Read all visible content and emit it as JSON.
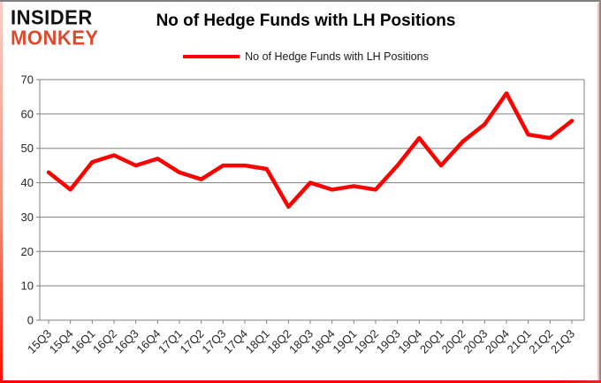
{
  "logo": {
    "line1": "INSIDER",
    "line2": "MONKEY",
    "line1_color": "#111111",
    "line2_color": "#d84b31"
  },
  "header": {
    "title": "No of Hedge Funds with LH Positions"
  },
  "legend": {
    "label": "No of Hedge Funds with LH Positions",
    "line_color": "#ff0000",
    "position": "top"
  },
  "chart_data": {
    "type": "line",
    "title": "No of Hedge Funds with LH Positions",
    "categories": [
      "15Q3",
      "15Q4",
      "16Q1",
      "16Q2",
      "16Q3",
      "16Q4",
      "17Q1",
      "17Q2",
      "17Q3",
      "17Q4",
      "18Q1",
      "18Q2",
      "18Q3",
      "18Q4",
      "19Q1",
      "19Q2",
      "19Q3",
      "19Q4",
      "20Q1",
      "20Q2",
      "20Q3",
      "20Q4",
      "21Q1",
      "21Q2",
      "21Q3"
    ],
    "series": [
      {
        "name": "No of Hedge Funds with LH Positions",
        "color": "#ff0000",
        "values": [
          43,
          38,
          46,
          48,
          45,
          47,
          43,
          41,
          45,
          45,
          44,
          33,
          40,
          38,
          39,
          38,
          45,
          53,
          45,
          52,
          57,
          66,
          54,
          53,
          58
        ]
      }
    ],
    "xlabel": "",
    "ylabel": "",
    "ylim": [
      0,
      70
    ],
    "ytick_step": 10,
    "yticks": [
      0,
      10,
      20,
      30,
      40,
      50,
      60,
      70
    ],
    "grid": true,
    "legend_position": "top"
  },
  "colors": {
    "background": "#ffffff",
    "grid": "#808080",
    "axis": "#808080",
    "tick_label": "#262626",
    "frame_gray": "#7f7f7f",
    "frame_red": "#fe0000",
    "frame_pink": "#f6c3b8"
  }
}
